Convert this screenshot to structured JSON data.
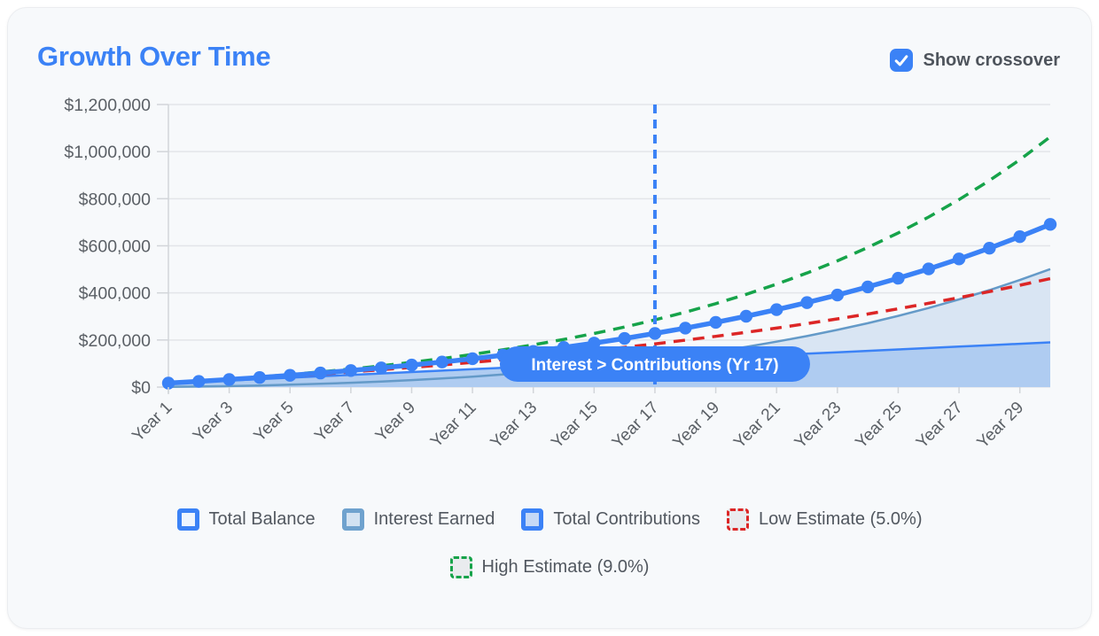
{
  "header": {
    "title": "Growth Over Time",
    "crossover_toggle": {
      "label": "Show crossover",
      "checked": true
    }
  },
  "colors": {
    "accent_blue": "#3b82f6",
    "steel_blue": "#649ac8",
    "interest_fill": "#d9e5f3",
    "contributions_fill": "#afccf1",
    "low_red": "#dc2626",
    "high_green": "#16a34a",
    "grid": "#e3e5e9",
    "axis": "#d2d5d9",
    "tick_text": "#5b6066",
    "badge_text": "#ffffff"
  },
  "chart_data": {
    "type": "line",
    "title": "Growth Over Time",
    "x": [
      1,
      2,
      3,
      4,
      5,
      6,
      7,
      8,
      9,
      10,
      11,
      12,
      13,
      14,
      15,
      16,
      17,
      18,
      19,
      20,
      21,
      22,
      23,
      24,
      25,
      26,
      27,
      28,
      29,
      30
    ],
    "x_tick_labels": [
      {
        "year": 1,
        "label": "Year 1"
      },
      {
        "year": 3,
        "label": "Year 3"
      },
      {
        "year": 5,
        "label": "Year 5"
      },
      {
        "year": 7,
        "label": "Year 7"
      },
      {
        "year": 9,
        "label": "Year 9"
      },
      {
        "year": 11,
        "label": "Year 11"
      },
      {
        "year": 13,
        "label": "Year 13"
      },
      {
        "year": 15,
        "label": "Year 15"
      },
      {
        "year": 17,
        "label": "Year 17"
      },
      {
        "year": 19,
        "label": "Year 19"
      },
      {
        "year": 21,
        "label": "Year 21"
      },
      {
        "year": 23,
        "label": "Year 23"
      },
      {
        "year": 25,
        "label": "Year 25"
      },
      {
        "year": 27,
        "label": "Year 27"
      },
      {
        "year": 29,
        "label": "Year 29"
      }
    ],
    "y_ticks": [
      {
        "value": 0,
        "label": "$0"
      },
      {
        "value": 200000,
        "label": "$200,000"
      },
      {
        "value": 400000,
        "label": "$400,000"
      },
      {
        "value": 600000,
        "label": "$600,000"
      },
      {
        "value": 800000,
        "label": "$800,000"
      },
      {
        "value": 1000000,
        "label": "$1,000,000"
      },
      {
        "value": 1200000,
        "label": "$1,200,000"
      }
    ],
    "ylim": [
      0,
      1200000
    ],
    "grid": true,
    "legend_position": "bottom",
    "series": [
      {
        "name": "Interest Earned",
        "type": "area",
        "stroke": "#649ac8",
        "fill": "#d9e5f3",
        "width": 2.5,
        "values": [
          900,
          2300,
          4300,
          6800,
          10000,
          13800,
          18300,
          23600,
          29700,
          36600,
          44500,
          53500,
          63400,
          74600,
          87000,
          100700,
          115800,
          132500,
          150800,
          170900,
          192800,
          216800,
          242900,
          271300,
          302300,
          335900,
          372400,
          411900,
          454800,
          501100
        ]
      },
      {
        "name": "Total Contributions",
        "type": "area",
        "stroke": "#3b82f6",
        "fill": "#afccf1",
        "width": 2.5,
        "values": [
          16000,
          22000,
          28000,
          34000,
          40000,
          46000,
          52000,
          58000,
          64000,
          70000,
          76000,
          82000,
          88000,
          94000,
          100000,
          106000,
          112000,
          118000,
          124000,
          130000,
          136000,
          142000,
          148000,
          154000,
          160000,
          166000,
          172000,
          178000,
          184000,
          190000
        ]
      },
      {
        "name": "Low Estimate (5.0%)",
        "type": "dashed-line",
        "stroke": "#dc2626",
        "width": 3.5,
        "dash": "13 9",
        "values": [
          16700,
          23600,
          31000,
          38700,
          46800,
          55400,
          64300,
          73800,
          83700,
          94100,
          105100,
          116600,
          128700,
          141400,
          154800,
          168800,
          183600,
          199200,
          215500,
          232600,
          250700,
          269700,
          289600,
          310500,
          332600,
          355700,
          380100,
          405600,
          432500,
          460800
        ]
      },
      {
        "name": "High Estimate (9.0%)",
        "type": "dashed-line",
        "stroke": "#16a34a",
        "width": 3.5,
        "dash": "13 9",
        "values": [
          17200,
          25100,
          33700,
          43100,
          53400,
          64600,
          76900,
          90400,
          105200,
          121300,
          138900,
          158200,
          179300,
          202300,
          227600,
          255200,
          285400,
          318400,
          354500,
          394000,
          437300,
          484500,
          536200,
          592800,
          654600,
          722300,
          796300,
          877300,
          965800,
          1062700
        ]
      },
      {
        "name": "Total Balance",
        "type": "line-dots",
        "stroke": "#3b82f6",
        "width": 5.5,
        "dot_radius": 7.2,
        "values": [
          16900,
          24300,
          32300,
          40800,
          50000,
          59800,
          70300,
          81600,
          93700,
          106600,
          120500,
          135500,
          151400,
          168600,
          187000,
          206700,
          227800,
          250500,
          274800,
          300900,
          328800,
          358800,
          390900,
          425300,
          462300,
          501900,
          544400,
          589900,
          638800,
          691100
        ]
      }
    ],
    "annotation": {
      "label": "Interest > Contributions (Yr 17)",
      "year": 17,
      "line_color": "#3b82f6",
      "badge_color": "#3b82f6",
      "badge_text_color": "#ffffff"
    }
  },
  "legend": {
    "row1": [
      {
        "label": "Total Balance",
        "border": "#3b82f6",
        "fill": "#eef5fe",
        "dashed": false
      },
      {
        "label": "Interest Earned",
        "border": "#6fa2ce",
        "fill": "#d2e2f2",
        "dashed": false
      },
      {
        "label": "Total Contributions",
        "border": "#3b82f6",
        "fill": "#c5d9f6",
        "dashed": false
      },
      {
        "label": "Low Estimate (5.0%)",
        "border": "#dc2626",
        "fill": "#e9ebee",
        "dashed": true
      }
    ],
    "row2": [
      {
        "label": "High Estimate (9.0%)",
        "border": "#16a34a",
        "fill": "#e9ebee",
        "dashed": true
      }
    ]
  }
}
